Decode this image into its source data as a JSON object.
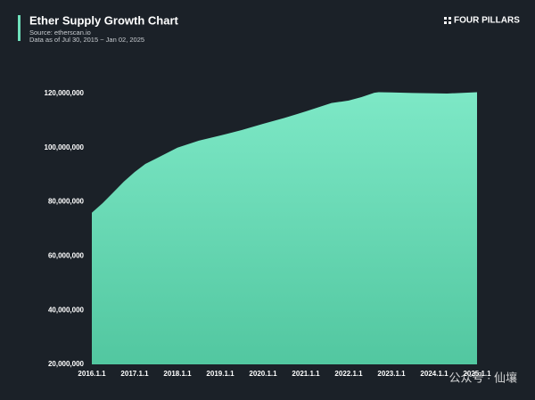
{
  "chart_data": {
    "type": "area",
    "title": "Ether Supply Growth Chart",
    "subtitle": [
      "Source: etherscan.io",
      "Data as of Jul 30, 2015 ~ Jan 02, 2025"
    ],
    "brand": "FOUR PILLARS",
    "watermark": "公众号 · 仙壤",
    "color": "#6fe0bb",
    "x": [
      2016.0,
      2016.25,
      2016.5,
      2016.75,
      2017.0,
      2017.25,
      2017.5,
      2018.0,
      2018.5,
      2019.0,
      2019.5,
      2020.0,
      2020.5,
      2021.0,
      2021.6,
      2022.0,
      2022.3,
      2022.6,
      2022.7,
      2023.0,
      2023.5,
      2024.0,
      2024.3,
      2025.0
    ],
    "values": [
      76000000,
      79500000,
      83500000,
      87500000,
      91000000,
      94000000,
      96000000,
      100000000,
      102600000,
      104500000,
      106500000,
      108800000,
      111000000,
      113400000,
      116500000,
      117400000,
      118700000,
      120300000,
      120500000,
      120400000,
      120200000,
      120100000,
      120000000,
      120500000
    ],
    "xlim": [
      2016,
      2025
    ],
    "xticks": [
      {
        "value": 2016,
        "label": "2016.1.1"
      },
      {
        "value": 2017,
        "label": "2017.1.1"
      },
      {
        "value": 2018,
        "label": "2018.1.1"
      },
      {
        "value": 2019,
        "label": "2019.1.1"
      },
      {
        "value": 2020,
        "label": "2020.1.1"
      },
      {
        "value": 2021,
        "label": "2021.1.1"
      },
      {
        "value": 2022,
        "label": "2022.1.1"
      },
      {
        "value": 2023,
        "label": "2023.1.1"
      },
      {
        "value": 2024,
        "label": "2024.1.1"
      },
      {
        "value": 2025,
        "label": "2025.1.1"
      }
    ],
    "ylim": [
      20000000,
      120000000
    ],
    "yticks": [
      {
        "value": 20000000,
        "label": "20,000,000"
      },
      {
        "value": 40000000,
        "label": "40,000,000"
      },
      {
        "value": 60000000,
        "label": "60,000,000"
      },
      {
        "value": 80000000,
        "label": "80,000,000"
      },
      {
        "value": 100000000,
        "label": "100,000,000"
      },
      {
        "value": 120000000,
        "label": "120,000,000"
      }
    ]
  }
}
